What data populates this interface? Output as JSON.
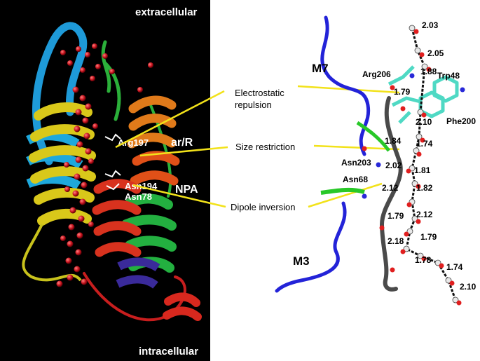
{
  "left_panel": {
    "labels": {
      "extracellular": "extracellular",
      "intracellular": "intracellular",
      "arg197": "Arg197",
      "ar_r": "ar/R",
      "asn194": "Asn194",
      "asn78": "Asn78",
      "npa": "NPA"
    }
  },
  "callouts": {
    "electrostatic_line1": "Electrostatic",
    "electrostatic_line2": "repulsion",
    "size": "Size restriction",
    "dipole": "Dipole inversion"
  },
  "right_panel": {
    "helix_labels": {
      "m7": "M7",
      "m3": "M3"
    },
    "residues": {
      "arg206": "Arg206",
      "trp48": "Trp48",
      "phe200": "Phe200",
      "asn203": "Asn203",
      "asn68": "Asn68"
    },
    "distances": [
      "2.03",
      "2.05",
      "1.88",
      "1.79",
      "2.10",
      "1.84",
      "1.74",
      "2.02",
      "1.81",
      "2.12",
      "1.82",
      "1.79",
      "2.12",
      "1.79",
      "2.18",
      "1.78",
      "1.74",
      "2.10"
    ]
  },
  "colors": {
    "background_left": "#000000",
    "callout_line": "#f2e21a",
    "helix_m7": "#2323d8",
    "helix_m3": "#2323d8",
    "water_red": "#c8141e",
    "carbon_cyan": "#4fd9c4"
  }
}
